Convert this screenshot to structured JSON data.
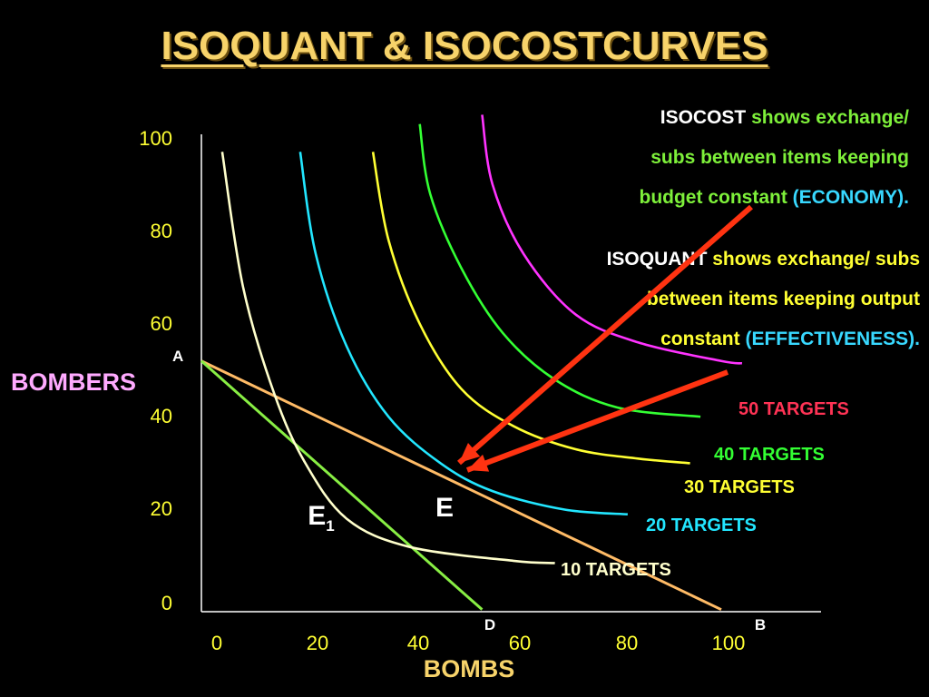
{
  "title": "ISOQUANT & ISOCOSTCURVES",
  "notes": {
    "isocost": {
      "term": "ISOCOST",
      "text1": "shows exchange/",
      "text2": "subs between items keeping",
      "text3": "budget constant",
      "paren": "(ECONOMY)."
    },
    "isoquant": {
      "term": "ISOQUANT",
      "text1": "shows exchange/ subs",
      "text2": "between items keeping output",
      "text3": "constant",
      "paren": "(EFFECTIVENESS)."
    }
  },
  "chart_data": {
    "type": "line",
    "title": "ISOQUANT & ISOCOSTCURVES",
    "xlabel": "BOMBS",
    "ylabel": "BOMBERS",
    "xlim": [
      0,
      100
    ],
    "ylim": [
      0,
      100
    ],
    "x_ticks": [
      "0",
      "20",
      "40",
      "60",
      "80",
      "100"
    ],
    "y_ticks": [
      "100",
      "80",
      "60",
      "40",
      "20",
      "0"
    ],
    "grid": false,
    "isoquants": [
      {
        "name": "10 TARGETS",
        "color": "#ffffcc",
        "points": [
          [
            4,
            97
          ],
          [
            8,
            68
          ],
          [
            14,
            45
          ],
          [
            20,
            30
          ],
          [
            28,
            18
          ],
          [
            40,
            12
          ],
          [
            60,
            9
          ],
          [
            68,
            8.5
          ]
        ]
      },
      {
        "name": "20 TARGETS",
        "color": "#22e6ff",
        "points": [
          [
            19,
            97
          ],
          [
            22,
            75
          ],
          [
            28,
            55
          ],
          [
            36,
            40
          ],
          [
            46,
            30
          ],
          [
            56,
            24
          ],
          [
            70,
            20
          ],
          [
            82,
            19
          ]
        ]
      },
      {
        "name": "30 TARGETS",
        "color": "#ffff33",
        "points": [
          [
            33,
            97
          ],
          [
            36,
            78
          ],
          [
            42,
            60
          ],
          [
            50,
            46
          ],
          [
            60,
            38
          ],
          [
            72,
            33
          ],
          [
            84,
            31
          ],
          [
            94,
            30
          ]
        ]
      },
      {
        "name": "40 TARGETS",
        "color": "#33ff33",
        "points": [
          [
            42,
            103
          ],
          [
            44,
            88
          ],
          [
            50,
            72
          ],
          [
            58,
            58
          ],
          [
            68,
            48
          ],
          [
            80,
            42
          ],
          [
            96,
            40
          ]
        ]
      },
      {
        "name": "50 TARGETS",
        "color": "#ff33ff",
        "points": [
          [
            54,
            105
          ],
          [
            56,
            90
          ],
          [
            62,
            75
          ],
          [
            72,
            62
          ],
          [
            84,
            56
          ],
          [
            100,
            52
          ],
          [
            104,
            51.5
          ]
        ]
      }
    ],
    "isocost_lines": [
      {
        "from": "A",
        "to": "B",
        "color": "#ffbb66",
        "points": [
          [
            0,
            52
          ],
          [
            100,
            -1.5
          ]
        ]
      },
      {
        "from": "A",
        "to": "D",
        "color": "#88ee44",
        "points": [
          [
            0,
            52
          ],
          [
            54,
            -1.5
          ]
        ]
      }
    ],
    "points": [
      {
        "label": "A",
        "x": 0,
        "y": 52
      },
      {
        "label": "B",
        "x": 100,
        "y": -1.5
      },
      {
        "label": "D",
        "x": 54,
        "y": -1.5
      },
      {
        "label": "E",
        "x": 50,
        "y": 27
      },
      {
        "label": "E1",
        "x": 24,
        "y": 21
      }
    ],
    "series_labels": [
      {
        "text": "50 TARGETS",
        "color": "#ff3355"
      },
      {
        "text": "40 TARGETS",
        "color": "#33ff33"
      },
      {
        "text": "30 TARGETS",
        "color": "#ffff33"
      },
      {
        "text": "20 TARGETS",
        "color": "#22e6ff"
      },
      {
        "text": "10 TARGETS",
        "color": "#ffffcc"
      }
    ],
    "arrows_color": "#ff3311"
  }
}
